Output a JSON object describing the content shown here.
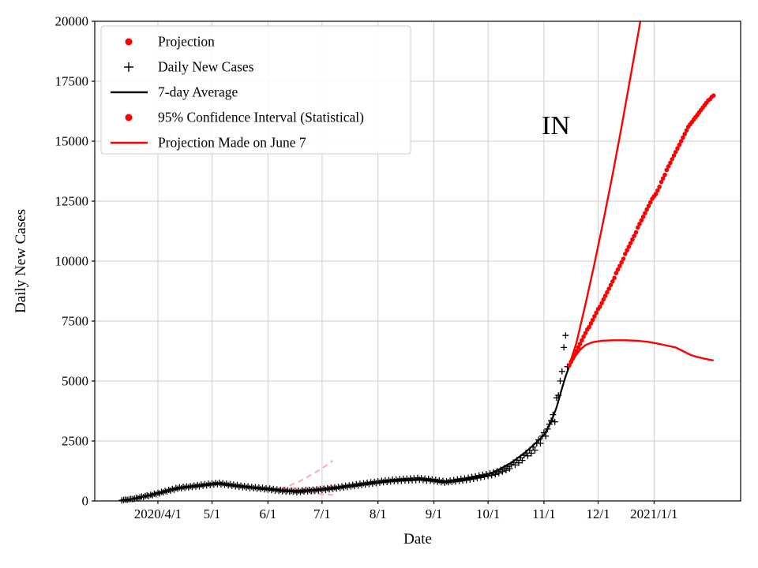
{
  "chart_data": {
    "type": "line",
    "annotation": "IN",
    "xlabel": "Date",
    "ylabel": "Daily New Cases",
    "ylim": [
      0,
      20000
    ],
    "yticks": [
      0,
      2500,
      5000,
      7500,
      10000,
      12500,
      15000,
      17500,
      20000
    ],
    "day_zero": "2020/3/1",
    "x_domain_days": [
      -4,
      354
    ],
    "grid": true,
    "xticks": [
      {
        "day": 31,
        "label": "2020/4/1"
      },
      {
        "day": 61,
        "label": "5/1"
      },
      {
        "day": 92,
        "label": "6/1"
      },
      {
        "day": 122,
        "label": "7/1"
      },
      {
        "day": 153,
        "label": "8/1"
      },
      {
        "day": 184,
        "label": "9/1"
      },
      {
        "day": 214,
        "label": "10/1"
      },
      {
        "day": 245,
        "label": "11/1"
      },
      {
        "day": 275,
        "label": "12/1"
      },
      {
        "day": 306,
        "label": "2021/1/1"
      }
    ],
    "colors": {
      "red": "#ff0000",
      "black": "#000000",
      "faded_pink": "#ffb0b0",
      "grid": "#cccccc",
      "legend_border": "#cccccc",
      "background": "#ffffff"
    },
    "legend": [
      {
        "label": "Projection",
        "marker": "dot",
        "color": "#ff0000"
      },
      {
        "label": "Daily New Cases",
        "marker": "plus",
        "color": "#000000"
      },
      {
        "label": "7-day Average",
        "marker": "line",
        "color": "#000000"
      },
      {
        "label": "95% Confidence Interval (Statistical)",
        "marker": "dot",
        "color": "#ff0000"
      },
      {
        "label": "Projection Made on June 7",
        "marker": "line",
        "color": "#ff0000"
      }
    ],
    "daily_new_cases": {
      "start_day": 11,
      "values": [
        25,
        40,
        55,
        45,
        70,
        85,
        75,
        95,
        130,
        110,
        150,
        180,
        160,
        210,
        230,
        200,
        260,
        240,
        300,
        280,
        340,
        310,
        380,
        360,
        420,
        390,
        460,
        430,
        500,
        470,
        540,
        510,
        570,
        530,
        590,
        550,
        610,
        570,
        620,
        580,
        640,
        600,
        660,
        610,
        680,
        630,
        700,
        650,
        720,
        660,
        730,
        680,
        750,
        700,
        760,
        690,
        740,
        670,
        720,
        650,
        700,
        630,
        680,
        610,
        660,
        590,
        640,
        570,
        620,
        560,
        610,
        540,
        590,
        530,
        580,
        510,
        560,
        500,
        550,
        480,
        530,
        470,
        520,
        450,
        500,
        430,
        480,
        420,
        460,
        400,
        450,
        390,
        440,
        380,
        430,
        380,
        420,
        360,
        420,
        370,
        430,
        390,
        450,
        400,
        460,
        410,
        470,
        420,
        480,
        430,
        500,
        450,
        510,
        460,
        530,
        480,
        550,
        500,
        570,
        520,
        590,
        540,
        610,
        560,
        630,
        580,
        650,
        600,
        670,
        620,
        700,
        640,
        720,
        660,
        740,
        680,
        760,
        700,
        780,
        720,
        800,
        740,
        820,
        760,
        840,
        780,
        860,
        790,
        870,
        810,
        890,
        820,
        900,
        830,
        910,
        840,
        920,
        850,
        930,
        850,
        940,
        860,
        950,
        870,
        960,
        880,
        950,
        870,
        930,
        850,
        920,
        840,
        900,
        820,
        880,
        800,
        860,
        780,
        840,
        760,
        820,
        780,
        850,
        790,
        870,
        810,
        900,
        830,
        920,
        850,
        940,
        870,
        970,
        890,
        1000,
        920,
        1030,
        950,
        1060,
        980,
        1090,
        1010,
        1120,
        1040,
        1150,
        1070,
        1190,
        1110,
        1240,
        1160,
        1300,
        1220,
        1370,
        1280,
        1440,
        1350,
        1520,
        1600,
        1500,
        1700,
        1590,
        1800,
        1690,
        1900,
        2000,
        1880,
        2120,
        1990,
        2250,
        2120,
        2400,
        2550,
        2400,
        2700,
        2850,
        2700,
        3000,
        3200,
        3350,
        3600,
        3300,
        4300,
        4400,
        5000,
        5400,
        6400,
        6900,
        5600
      ]
    },
    "seven_day_average": {
      "points": [
        [
          11,
          30
        ],
        [
          15,
          60
        ],
        [
          20,
          120
        ],
        [
          25,
          220
        ],
        [
          31,
          330
        ],
        [
          38,
          450
        ],
        [
          45,
          550
        ],
        [
          52,
          600
        ],
        [
          58,
          650
        ],
        [
          61,
          690
        ],
        [
          64,
          720
        ],
        [
          70,
          650
        ],
        [
          78,
          600
        ],
        [
          85,
          560
        ],
        [
          92,
          520
        ],
        [
          99,
          450
        ],
        [
          106,
          420
        ],
        [
          113,
          440
        ],
        [
          122,
          480
        ],
        [
          130,
          560
        ],
        [
          140,
          680
        ],
        [
          153,
          780
        ],
        [
          160,
          850
        ],
        [
          170,
          880
        ],
        [
          177,
          900
        ],
        [
          184,
          850
        ],
        [
          190,
          800
        ],
        [
          197,
          870
        ],
        [
          204,
          950
        ],
        [
          214,
          1100
        ],
        [
          221,
          1350
        ],
        [
          228,
          1650
        ],
        [
          235,
          2050
        ],
        [
          241,
          2450
        ],
        [
          245,
          2750
        ],
        [
          249,
          3300
        ],
        [
          252,
          3900
        ],
        [
          255,
          4700
        ],
        [
          257,
          5200
        ],
        [
          259,
          5600
        ]
      ]
    },
    "projection": {
      "start_day": 259,
      "values": [
        5650,
        5800,
        5950,
        6100,
        6250,
        6400,
        6550,
        6700,
        6850,
        7000,
        7150,
        7250,
        7400,
        7550,
        7700,
        7850,
        8000,
        8100,
        8250,
        8400,
        8550,
        8700,
        8850,
        9000,
        9150,
        9300,
        9500,
        9650,
        9800,
        9950,
        10100,
        10300,
        10450,
        10600,
        10750,
        10900,
        11050,
        11200,
        11400,
        11550,
        11700,
        11850,
        12000,
        12150,
        12300,
        12450,
        12600,
        12700,
        12800,
        12950,
        13100,
        13300,
        13450,
        13600,
        13800,
        13950,
        14100,
        14250,
        14400,
        14550,
        14700,
        14850,
        15000,
        15150,
        15300,
        15450,
        15600,
        15700,
        15800,
        15900,
        16000,
        16100,
        16200,
        16300,
        16400,
        16500,
        16600,
        16700,
        16750,
        16850,
        16900
      ]
    },
    "ci_upper": {
      "points": [
        [
          259,
          5650
        ],
        [
          263,
          6600
        ],
        [
          268,
          8200
        ],
        [
          273,
          9900
        ],
        [
          278,
          11700
        ],
        [
          283,
          13600
        ],
        [
          288,
          15600
        ],
        [
          293,
          17700
        ],
        [
          297,
          19400
        ],
        [
          300,
          20700
        ],
        [
          302,
          21600
        ]
      ]
    },
    "ci_lower": {
      "points": [
        [
          259,
          5600
        ],
        [
          262,
          6000
        ],
        [
          265,
          6300
        ],
        [
          268,
          6500
        ],
        [
          272,
          6620
        ],
        [
          277,
          6680
        ],
        [
          283,
          6700
        ],
        [
          290,
          6700
        ],
        [
          297,
          6680
        ],
        [
          303,
          6630
        ],
        [
          308,
          6560
        ],
        [
          313,
          6480
        ],
        [
          318,
          6400
        ],
        [
          322,
          6250
        ],
        [
          326,
          6100
        ],
        [
          330,
          6000
        ],
        [
          334,
          5930
        ],
        [
          339,
          5860
        ]
      ]
    },
    "june7_projection": {
      "upper": [
        [
          99,
          500
        ],
        [
          104,
          640
        ],
        [
          109,
          800
        ],
        [
          114,
          1000
        ],
        [
          119,
          1220
        ],
        [
          124,
          1460
        ],
        [
          128,
          1680
        ]
      ],
      "lower": [
        [
          99,
          460
        ],
        [
          104,
          410
        ],
        [
          109,
          370
        ],
        [
          114,
          330
        ],
        [
          119,
          300
        ],
        [
          124,
          270
        ],
        [
          128,
          250
        ]
      ],
      "middle_dots": [
        [
          99,
          480
        ],
        [
          102,
          490
        ],
        [
          105,
          495
        ],
        [
          108,
          500
        ],
        [
          111,
          510
        ],
        [
          114,
          520
        ],
        [
          117,
          530
        ],
        [
          120,
          545
        ],
        [
          123,
          555
        ],
        [
          126,
          570
        ],
        [
          128,
          580
        ]
      ]
    }
  }
}
